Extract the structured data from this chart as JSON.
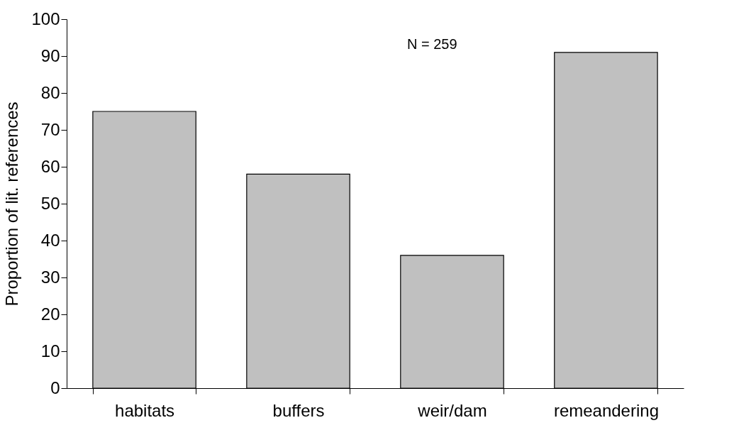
{
  "chart_data": {
    "type": "bar",
    "ylabel": "Proportion of lit. references",
    "categories": [
      "habitats",
      "buffers",
      "weir/dam",
      "remeandering"
    ],
    "values": [
      75,
      58,
      36,
      91
    ],
    "color": "#c0c0c0",
    "ylim": [
      0,
      100
    ],
    "yticks": [
      0,
      10,
      20,
      30,
      40,
      50,
      60,
      70,
      80,
      90,
      100
    ],
    "grid": false,
    "annotations": [
      "N = 259"
    ]
  }
}
